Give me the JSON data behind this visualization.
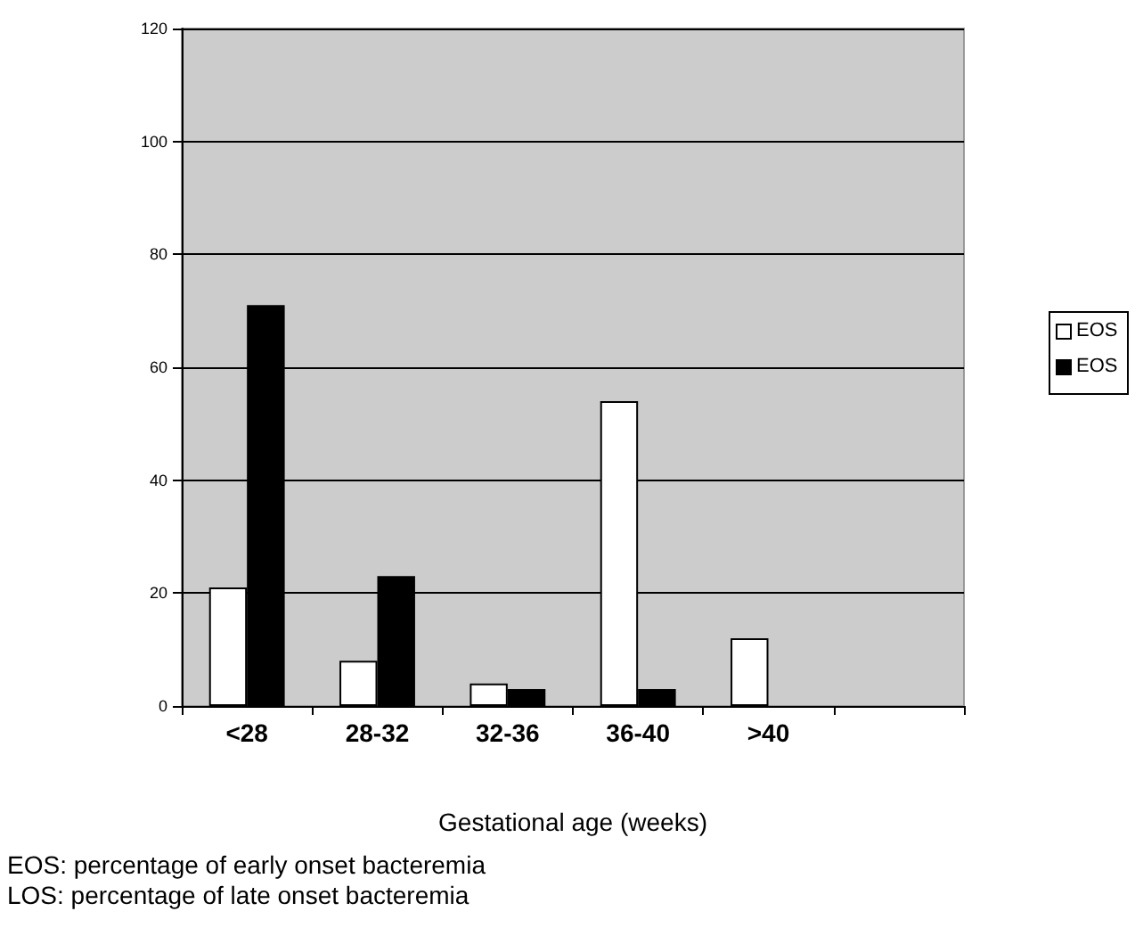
{
  "chart_data": {
    "type": "bar",
    "xlabel": "Gestational age (weeks)",
    "categories": [
      "<28",
      "28-32",
      "32-36",
      "36-40",
      ">40",
      null
    ],
    "series": [
      {
        "name": "EOS",
        "color": "#ffffff",
        "values": [
          21,
          8,
          4,
          54,
          12,
          null
        ]
      },
      {
        "name": "EOS",
        "color": "#000000",
        "values": [
          71,
          23,
          3,
          3,
          null,
          null
        ]
      }
    ],
    "ylim": [
      0,
      120
    ],
    "yticks": [
      0,
      20,
      40,
      60,
      80,
      100,
      120
    ],
    "grid": "y",
    "legend": "right",
    "annotations": [
      "EOS: percentage of early onset bacteremia",
      "LOS: percentage of late onset bacteremia"
    ]
  }
}
